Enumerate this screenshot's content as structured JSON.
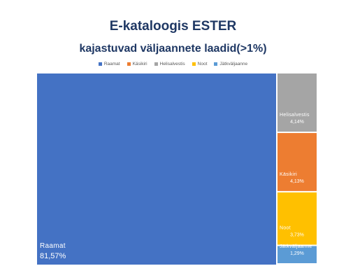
{
  "title": {
    "line1": "E-kataloogis ESTER",
    "line2": "kajastuvad väljaannete laadid(>1%)"
  },
  "chart_data": {
    "type": "treemap",
    "categories": [
      "Raamat",
      "Käsikiri",
      "Helisalvestis",
      "Noot",
      "Jätkväljaanne"
    ],
    "values": [
      81.57,
      4.13,
      4.14,
      3.73,
      1.29
    ],
    "value_labels": [
      "81,57%",
      "4,13%",
      "4,14%",
      "3,73%",
      "1,29%"
    ],
    "colors": {
      "Raamat": "#4472c4",
      "Käsikiri": "#ed7d31",
      "Helisalvestis": "#a5a5a5",
      "Noot": "#ffc000",
      "Jätkväljaanne": "#5b9bd5"
    },
    "legend_position": "top"
  }
}
